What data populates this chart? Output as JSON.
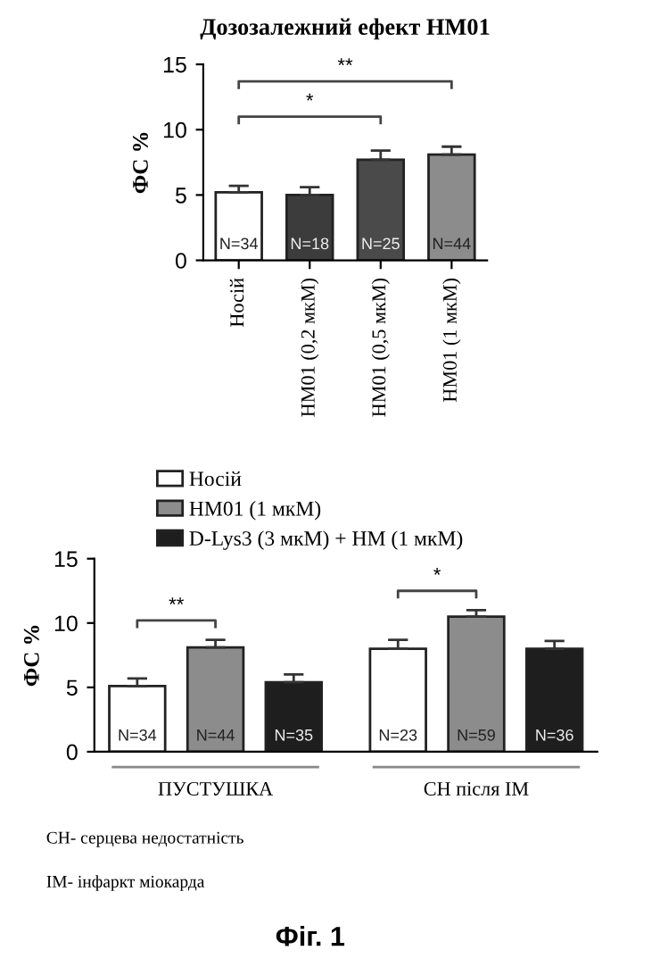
{
  "chart_data": [
    {
      "type": "bar",
      "title": "Дозозалежний ефект HM01",
      "ylabel": "ФС %",
      "categories": [
        "Носій",
        "HM01 (0,2 мкМ)",
        "HM01 (0,5 мкМ)",
        "HM01 (1 мкМ)"
      ],
      "values": [
        5.2,
        5.0,
        7.7,
        8.1
      ],
      "errors": [
        [
          5.2,
          5.7
        ],
        [
          5.0,
          5.6
        ],
        [
          7.7,
          8.4
        ],
        [
          8.1,
          8.7
        ]
      ],
      "colors": [
        "#ffffff",
        "#3c3c3c",
        "#4a4a4a",
        "#8c8c8c"
      ],
      "ylim": [
        0,
        15
      ],
      "yticks": [
        0,
        5,
        10,
        15
      ],
      "grid": false,
      "annotations": [
        "N=34",
        "N=18",
        "N=25",
        "N=44",
        "*",
        "**"
      ]
    },
    {
      "type": "bar",
      "ylabel": "ФС %",
      "categories": [
        "ПУСТУШКА",
        "СН після ІМ"
      ],
      "series": [
        {
          "name": "Носій",
          "color": "#ffffff",
          "values": [
            5.1,
            8.0
          ],
          "errors": [
            [
              5.1,
              5.7
            ],
            [
              8.0,
              8.7
            ]
          ]
        },
        {
          "name": "HM01 (1 мкМ)",
          "color": "#8c8c8c",
          "values": [
            8.1,
            10.5
          ],
          "errors": [
            [
              8.1,
              8.7
            ],
            [
              10.5,
              11.0
            ]
          ]
        },
        {
          "name": "D-Lys3 (3 мкМ) + HM (1 мкМ)",
          "color": "#1e1e1e",
          "values": [
            5.4,
            8.0
          ],
          "errors": [
            [
              5.4,
              6.0
            ],
            [
              8.0,
              8.6
            ]
          ]
        }
      ],
      "ylim": [
        0,
        15
      ],
      "yticks": [
        0,
        5,
        10,
        15
      ],
      "grid": false,
      "legend": "top left",
      "annotations": [
        "N=34",
        "N=44",
        "N=35",
        "N=23",
        "N=59",
        "N=36",
        "**",
        "*",
        "СН- серцева недостатність",
        "ІМ- інфаркт міокарда",
        "Фіг. 1"
      ]
    }
  ]
}
